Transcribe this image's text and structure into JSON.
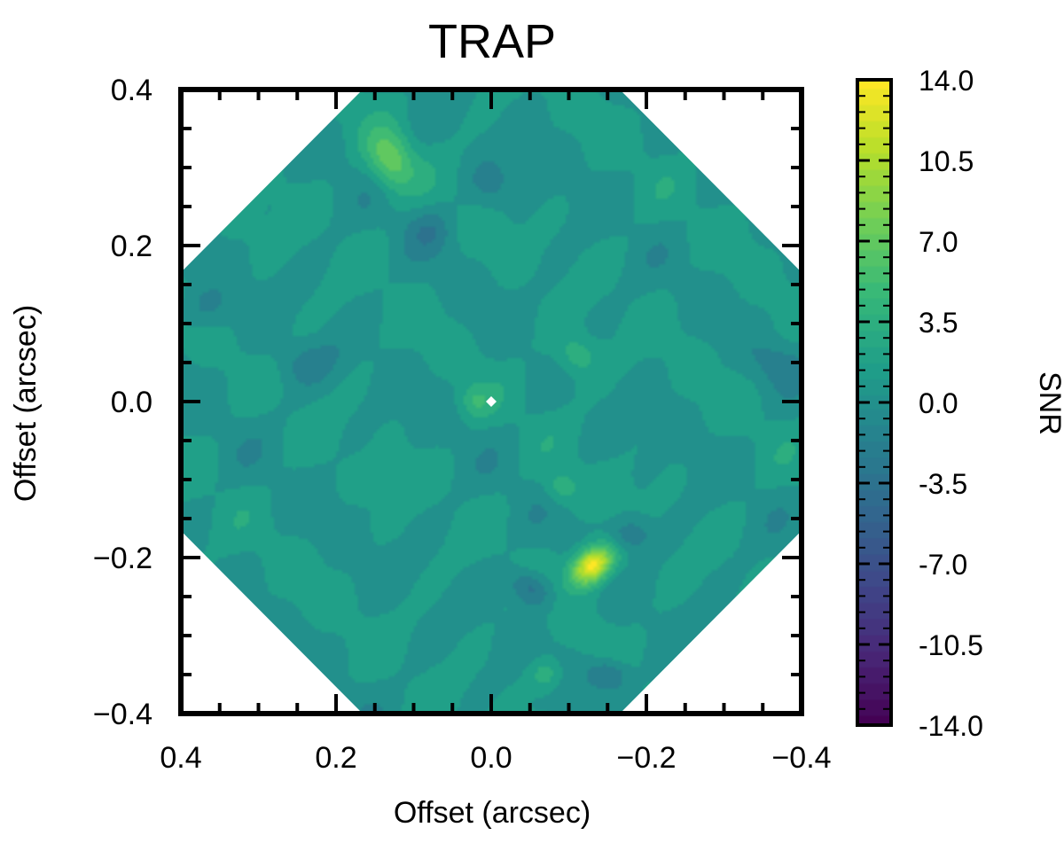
{
  "chart_data": {
    "type": "heatmap",
    "title": "TRAP",
    "xlabel": "Offset (arcsec)",
    "ylabel": "Offset (arcsec)",
    "xlim": [
      0.4,
      -0.4
    ],
    "ylim": [
      -0.4,
      0.4
    ],
    "x_tick_values": [
      0.4,
      0.2,
      0.0,
      -0.2,
      -0.4
    ],
    "x_tick_labels": [
      "0.4",
      "0.2",
      "0.0",
      "−0.2",
      "−0.4"
    ],
    "y_tick_values": [
      0.4,
      0.2,
      0.0,
      -0.2,
      -0.4
    ],
    "y_tick_labels": [
      "0.4",
      "0.2",
      "0.0",
      "−0.2",
      "−0.4"
    ],
    "field_of_view": "octagon",
    "field_radius_arcsec": 0.4,
    "background_snr": 0.8,
    "features": [
      {
        "x": -0.13,
        "y": -0.21,
        "snr": 14.0,
        "sigma_major": 0.022,
        "sigma_minor": 0.015,
        "angle_deg": -40
      },
      {
        "x": 0.13,
        "y": 0.31,
        "snr": 6.5,
        "sigma_major": 0.028,
        "sigma_minor": 0.02,
        "angle_deg": 70
      },
      {
        "x": -0.11,
        "y": 0.06,
        "snr": 3.5,
        "sigma_major": 0.02,
        "sigma_minor": 0.02,
        "angle_deg": 0
      },
      {
        "x": -0.09,
        "y": -0.11,
        "snr": 3.0,
        "sigma_major": 0.015,
        "sigma_minor": 0.015,
        "angle_deg": 0
      },
      {
        "x": 0.02,
        "y": 0.0,
        "snr": 3.0,
        "sigma_major": 0.015,
        "sigma_minor": 0.015,
        "angle_deg": 0
      },
      {
        "x": -0.07,
        "y": -0.35,
        "snr": 3.5,
        "sigma_major": 0.015,
        "sigma_minor": 0.015,
        "angle_deg": 0
      },
      {
        "x": -0.05,
        "y": -0.24,
        "snr": -5.0,
        "sigma_major": 0.02,
        "sigma_minor": 0.015,
        "angle_deg": 30
      },
      {
        "x": -0.15,
        "y": -0.35,
        "snr": -4.5,
        "sigma_major": 0.02,
        "sigma_minor": 0.015,
        "angle_deg": 0
      },
      {
        "x": -0.18,
        "y": -0.17,
        "snr": -3.5,
        "sigma_major": 0.02,
        "sigma_minor": 0.015,
        "angle_deg": 0
      },
      {
        "x": 0.08,
        "y": 0.22,
        "snr": -2.5,
        "sigma_major": 0.02,
        "sigma_minor": 0.02,
        "angle_deg": 0
      },
      {
        "x": 0.0,
        "y": 0.28,
        "snr": -2.0,
        "sigma_major": 0.02,
        "sigma_minor": 0.02,
        "angle_deg": 0
      },
      {
        "x": 0.24,
        "y": 0.05,
        "snr": -2.0,
        "sigma_major": 0.03,
        "sigma_minor": 0.02,
        "angle_deg": 0
      },
      {
        "x": 0.37,
        "y": 0.12,
        "snr": -2.5,
        "sigma_major": 0.025,
        "sigma_minor": 0.02,
        "angle_deg": 0
      },
      {
        "x": -0.37,
        "y": 0.05,
        "snr": -2.0,
        "sigma_major": 0.025,
        "sigma_minor": 0.02,
        "angle_deg": 0
      }
    ],
    "center_marker": {
      "x": 0.0,
      "y": 0.0,
      "color": "#ffffff"
    },
    "colorbar": {
      "label": "SNR",
      "min": -14.0,
      "max": 14.0,
      "tick_values": [
        14.0,
        10.5,
        7.0,
        3.5,
        0.0,
        -3.5,
        -7.0,
        -10.5,
        -14.0
      ],
      "tick_labels": [
        "14.0",
        "10.5",
        "7.0",
        "3.5",
        "0.0",
        "-3.5",
        "-7.0",
        "-10.5",
        "-14.0"
      ],
      "colormap": "viridis",
      "colormap_stops": [
        "#440154",
        "#482878",
        "#3e4989",
        "#31688e",
        "#26828e",
        "#1f9e89",
        "#35b779",
        "#6ece58",
        "#b5de2b",
        "#fde725"
      ]
    },
    "grid": false,
    "legend": "none"
  }
}
